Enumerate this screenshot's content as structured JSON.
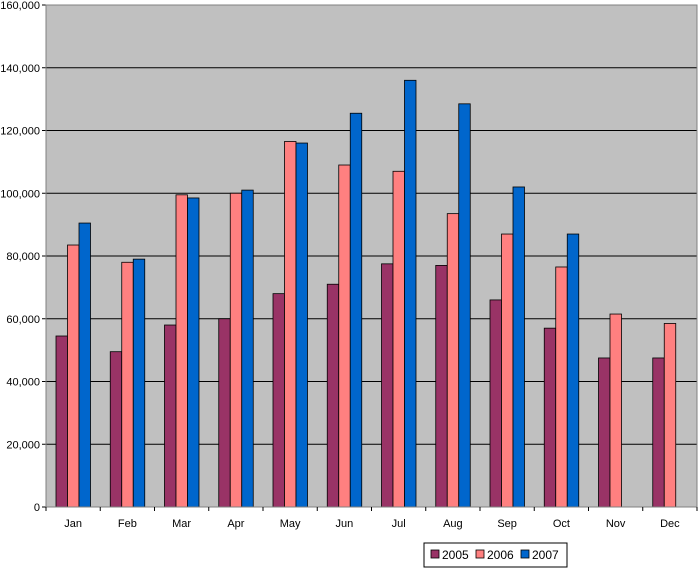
{
  "chart_data": {
    "type": "bar",
    "title": "",
    "xlabel": "",
    "ylabel": "",
    "ylim": [
      0,
      160000
    ],
    "yticks": [
      "0",
      "20,000",
      "40,000",
      "60,000",
      "80,000",
      "100,000",
      "120,000",
      "140,000",
      "160,000"
    ],
    "ytick_values": [
      0,
      20000,
      40000,
      60000,
      80000,
      100000,
      120000,
      140000,
      160000
    ],
    "grid": true,
    "legend_position": "bottom-right",
    "categories": [
      "Jan",
      "Feb",
      "Mar",
      "Apr",
      "May",
      "Jun",
      "Jul",
      "Aug",
      "Sep",
      "Oct",
      "Nov",
      "Dec"
    ],
    "series": [
      {
        "name": "2005",
        "color": "#993366",
        "values": [
          54500,
          49500,
          58000,
          60000,
          68000,
          71000,
          77500,
          77000,
          66000,
          57000,
          47500,
          47500
        ]
      },
      {
        "name": "2006",
        "color": "#ff8080",
        "values": [
          83500,
          78000,
          99500,
          100000,
          116500,
          109000,
          107000,
          93500,
          87000,
          76500,
          61500,
          58500
        ]
      },
      {
        "name": "2007",
        "color": "#0066cc",
        "values": [
          90500,
          79000,
          98500,
          101000,
          116000,
          125500,
          136000,
          128500,
          102000,
          87000,
          null,
          null
        ]
      }
    ],
    "plot_background": "#c0c0c0",
    "gridline_color": "#000000"
  }
}
